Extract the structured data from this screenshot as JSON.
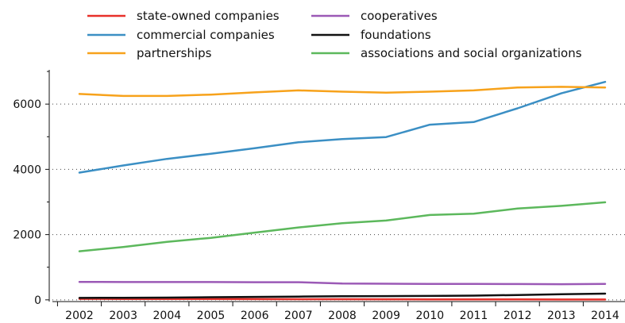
{
  "chart_data": {
    "type": "line",
    "title": "",
    "xlabel": "",
    "ylabel": "",
    "x": [
      2002,
      2003,
      2004,
      2005,
      2006,
      2007,
      2008,
      2009,
      2010,
      2011,
      2012,
      2013,
      2014
    ],
    "ylim": [
      -150,
      7050
    ],
    "yticks": [
      0,
      2000,
      4000,
      6000
    ],
    "grid": "horizontal dotted",
    "legend_position": "top",
    "series": [
      {
        "name": "state-owned companies",
        "color": "#e8302a",
        "values": [
          30,
          28,
          27,
          25,
          22,
          20,
          20,
          18,
          15,
          12,
          12,
          10,
          10
        ]
      },
      {
        "name": "commercial companies",
        "color": "#3b8fc4",
        "values": [
          3900,
          4120,
          4320,
          4480,
          4650,
          4830,
          4930,
          4990,
          5370,
          5450,
          5870,
          6330,
          6680
        ]
      },
      {
        "name": "partnerships",
        "color": "#f7a21b",
        "values": [
          6310,
          6250,
          6250,
          6290,
          6360,
          6420,
          6380,
          6350,
          6380,
          6420,
          6510,
          6530,
          6510
        ]
      },
      {
        "name": "cooperatives",
        "color": "#9b59b6",
        "values": [
          550,
          545,
          545,
          545,
          540,
          540,
          500,
          495,
          490,
          490,
          485,
          480,
          490
        ]
      },
      {
        "name": "foundations",
        "color": "#111111",
        "values": [
          60,
          65,
          70,
          80,
          90,
          100,
          110,
          115,
          120,
          130,
          150,
          170,
          190
        ]
      },
      {
        "name": "associations and social organizations",
        "color": "#5cb85c",
        "values": [
          1490,
          1620,
          1780,
          1900,
          2060,
          2220,
          2350,
          2430,
          2600,
          2640,
          2800,
          2880,
          2990
        ]
      }
    ]
  }
}
